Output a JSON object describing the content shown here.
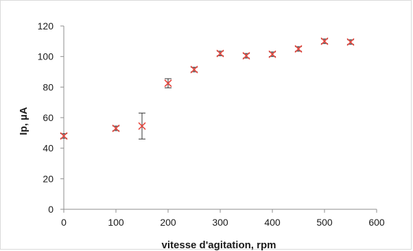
{
  "chart_data": {
    "type": "scatter",
    "title": "",
    "xlabel": "vitesse d'agitation, rpm",
    "ylabel": "Ip, µA",
    "xlim": [
      0,
      600
    ],
    "ylim": [
      0,
      120
    ],
    "x_ticks": [
      0,
      100,
      200,
      300,
      400,
      500,
      600
    ],
    "y_ticks": [
      0,
      20,
      40,
      60,
      80,
      100,
      120
    ],
    "grid": false,
    "legend": "none",
    "series": [
      {
        "marker": "x",
        "color": "#e8473f",
        "x": [
          0,
          100,
          150,
          200,
          250,
          300,
          350,
          400,
          450,
          500,
          550
        ],
        "y": [
          48,
          53,
          54.5,
          82.5,
          91.5,
          102,
          100.5,
          101.5,
          105,
          110,
          109.5
        ],
        "error": [
          1.5,
          1.5,
          8.5,
          3,
          1.5,
          1.5,
          1.5,
          1.5,
          1.5,
          1.5,
          1.5
        ]
      }
    ]
  }
}
